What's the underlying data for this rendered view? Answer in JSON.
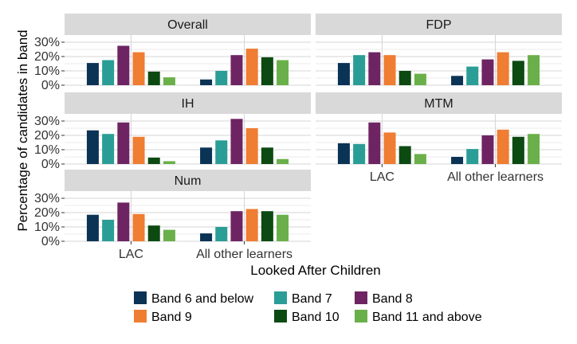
{
  "chart_data": {
    "type": "bar",
    "xlabel": "Looked After Children",
    "ylabel": "Percentage of candidates in band",
    "categories": [
      "LAC",
      "All other learners"
    ],
    "ylim": [
      0,
      35
    ],
    "y_ticks": [
      "0%",
      "10%",
      "20%",
      "30%"
    ],
    "legend_position": "bottom",
    "grid": true,
    "series": [
      {
        "name": "Band 6 and below",
        "color": "#0b3355"
      },
      {
        "name": "Band 7",
        "color": "#2a9d96"
      },
      {
        "name": "Band 8",
        "color": "#6e2463"
      },
      {
        "name": "Band 9",
        "color": "#ef7d32"
      },
      {
        "name": "Band 10",
        "color": "#0d4a12"
      },
      {
        "name": "Band 11 and above",
        "color": "#6ab04a"
      }
    ],
    "panels": [
      {
        "title": "Overall",
        "values": [
          [
            15.5,
            17.5,
            27.5,
            23,
            9.5,
            5.5
          ],
          [
            4,
            10,
            21,
            25.5,
            19.5,
            17.5
          ]
        ]
      },
      {
        "title": "FDP",
        "values": [
          [
            15.5,
            21,
            23,
            21,
            10,
            8
          ],
          [
            6.5,
            13,
            18,
            23,
            17,
            21
          ]
        ]
      },
      {
        "title": "IH",
        "values": [
          [
            23.5,
            21,
            29,
            19,
            4.5,
            2
          ],
          [
            11.5,
            16.5,
            31.5,
            25,
            11.5,
            3.5
          ]
        ]
      },
      {
        "title": "MTM",
        "values": [
          [
            14.5,
            14,
            29,
            22,
            12.5,
            7
          ],
          [
            5,
            10.5,
            20,
            24,
            19,
            21
          ]
        ]
      },
      {
        "title": "Num",
        "values": [
          [
            18.5,
            15,
            27,
            19,
            11,
            8
          ],
          [
            5.5,
            10,
            21,
            22.5,
            21,
            18.5
          ]
        ]
      }
    ]
  }
}
